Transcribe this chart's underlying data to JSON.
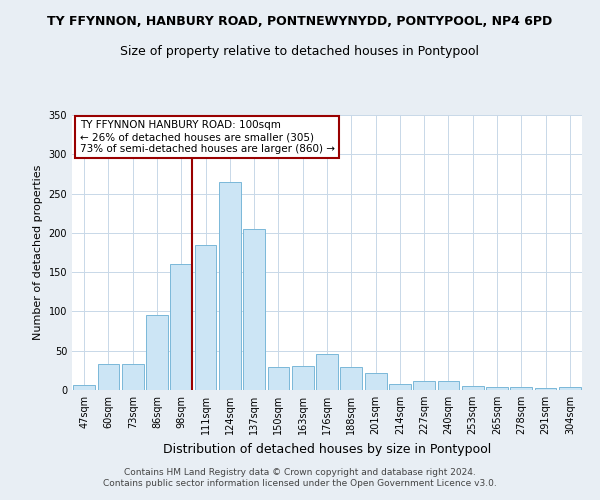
{
  "title": "TY FFYNNON, HANBURY ROAD, PONTNEWYNYDD, PONTYPOOL, NP4 6PD",
  "subtitle": "Size of property relative to detached houses in Pontypool",
  "xlabel": "Distribution of detached houses by size in Pontypool",
  "ylabel": "Number of detached properties",
  "bar_color": "#cce5f5",
  "bar_edge_color": "#7ab8d8",
  "categories": [
    "47sqm",
    "60sqm",
    "73sqm",
    "86sqm",
    "98sqm",
    "111sqm",
    "124sqm",
    "137sqm",
    "150sqm",
    "163sqm",
    "176sqm",
    "188sqm",
    "201sqm",
    "214sqm",
    "227sqm",
    "240sqm",
    "253sqm",
    "265sqm",
    "278sqm",
    "291sqm",
    "304sqm"
  ],
  "values": [
    7,
    33,
    33,
    95,
    160,
    185,
    265,
    205,
    29,
    30,
    46,
    29,
    22,
    8,
    12,
    12,
    5,
    4,
    4,
    3,
    4
  ],
  "vline_pos": 4.45,
  "vline_color": "#990000",
  "annotation_title": "TY FFYNNON HANBURY ROAD: 100sqm",
  "annotation_line1": "← 26% of detached houses are smaller (305)",
  "annotation_line2": "73% of semi-detached houses are larger (860) →",
  "annotation_box_color": "white",
  "annotation_box_edge": "#990000",
  "ylim": [
    0,
    350
  ],
  "yticks": [
    0,
    50,
    100,
    150,
    200,
    250,
    300,
    350
  ],
  "footer1": "Contains HM Land Registry data © Crown copyright and database right 2024.",
  "footer2": "Contains public sector information licensed under the Open Government Licence v3.0.",
  "bg_color": "#e8eef4",
  "plot_bg_color": "#ffffff",
  "grid_color": "#c8d8e8",
  "title_fontsize": 9,
  "subtitle_fontsize": 9,
  "ylabel_fontsize": 8,
  "xlabel_fontsize": 9,
  "tick_fontsize": 7,
  "footer_fontsize": 6.5,
  "ann_fontsize": 7.5
}
